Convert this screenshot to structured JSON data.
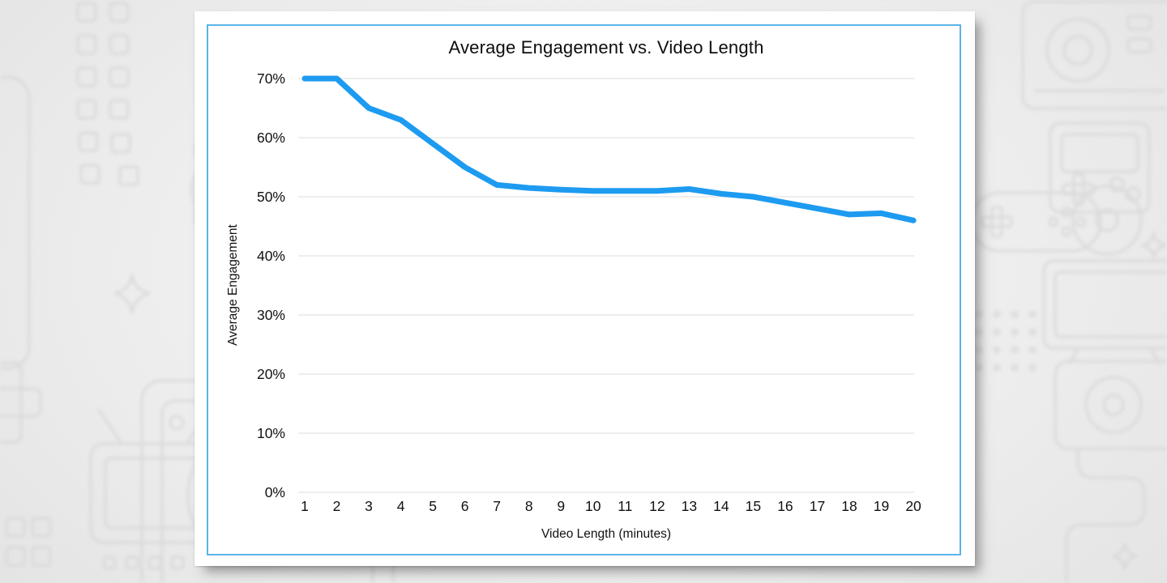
{
  "background": {
    "theme": "faint gaming doodle pattern",
    "icons": [
      "joystick-icon",
      "game-controller-icon",
      "handheld-console-icon",
      "tv-monitor-icon",
      "cd-disc-icon",
      "console-box-icon",
      "sparkle-icon",
      "dots-grid-icon",
      "pipe-zigzag-icon",
      "cloud-icon",
      "capsule-icon",
      "dpad-icon"
    ]
  },
  "card": {
    "border_color": "#5bb4e7",
    "background": "#ffffff"
  },
  "chart_data": {
    "type": "line",
    "title": "Average Engagement vs. Video Length",
    "xlabel": "Video Length (minutes)",
    "ylabel": "Average Engagement",
    "x": [
      1,
      2,
      3,
      4,
      5,
      6,
      7,
      8,
      9,
      10,
      11,
      12,
      13,
      14,
      15,
      16,
      17,
      18,
      19,
      20
    ],
    "values": [
      70,
      70,
      65,
      63,
      59,
      55,
      52,
      51.5,
      51.2,
      51,
      51,
      51,
      51.3,
      50.5,
      50,
      49,
      48,
      47,
      47.2,
      46
    ],
    "ylim": [
      0,
      70
    ],
    "ytick_values": [
      0,
      10,
      20,
      30,
      40,
      50,
      60,
      70
    ],
    "ytick_labels": [
      "0%",
      "10%",
      "20%",
      "30%",
      "40%",
      "50%",
      "60%",
      "70%"
    ],
    "grid": "horizontal-only",
    "legend": "none",
    "line_color": "#1d9bf0",
    "line_width": 7,
    "gridline_color": "#e4e4e4"
  }
}
